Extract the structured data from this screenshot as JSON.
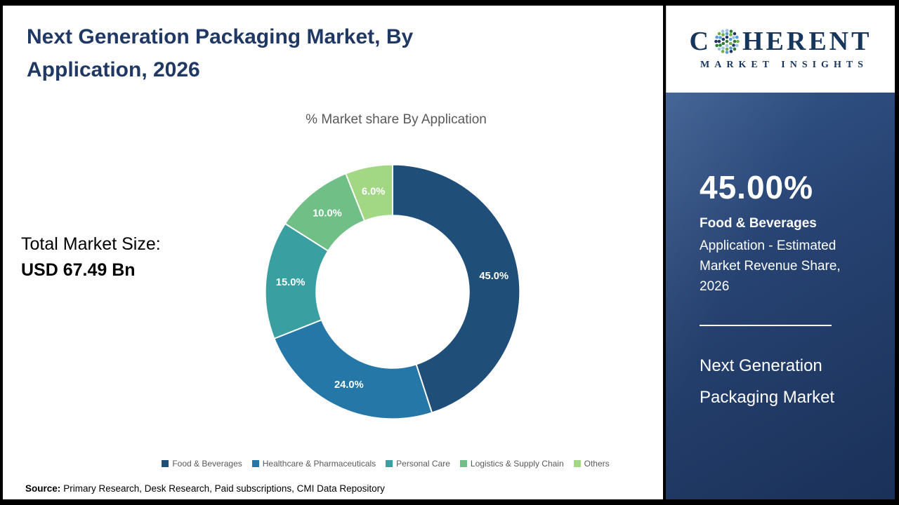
{
  "title": "Next Generation Packaging Market, By Application, 2026",
  "chart_data": {
    "type": "pie",
    "donut": true,
    "title": "% Market share By Application",
    "start_angle_deg": 0,
    "direction": "clockwise",
    "categories": [
      "Food & Beverages",
      "Healthcare & Pharmaceuticals",
      "Personal Care",
      "Logistics & Supply Chain",
      "Others"
    ],
    "values": [
      45.0,
      24.0,
      15.0,
      10.0,
      6.0
    ],
    "labels": [
      "45.0%",
      "24.0%",
      "15.0%",
      "10.0%",
      "6.0%"
    ],
    "colors": [
      "#1F4E79",
      "#2577A8",
      "#3A9FA0",
      "#6FBF87",
      "#A2D883"
    ],
    "legend_position": "bottom"
  },
  "total_market": {
    "label": "Total Market Size:",
    "value": "USD 67.49 Bn"
  },
  "source": {
    "label": "Source:",
    "text": "Primary Research, Desk Research, Paid subscriptions, CMI Data Repository"
  },
  "logo": {
    "word_start": "C",
    "word_end": "HERENT",
    "subtitle": "MARKET INSIGHTS"
  },
  "sidebar": {
    "stat_value": "45.00%",
    "stat_title": "Food & Beverages",
    "stat_desc": "Application - Estimated Market Revenue Share, 2026",
    "market_name": "Next Generation Packaging Market",
    "panel_color": "#1F3864"
  }
}
